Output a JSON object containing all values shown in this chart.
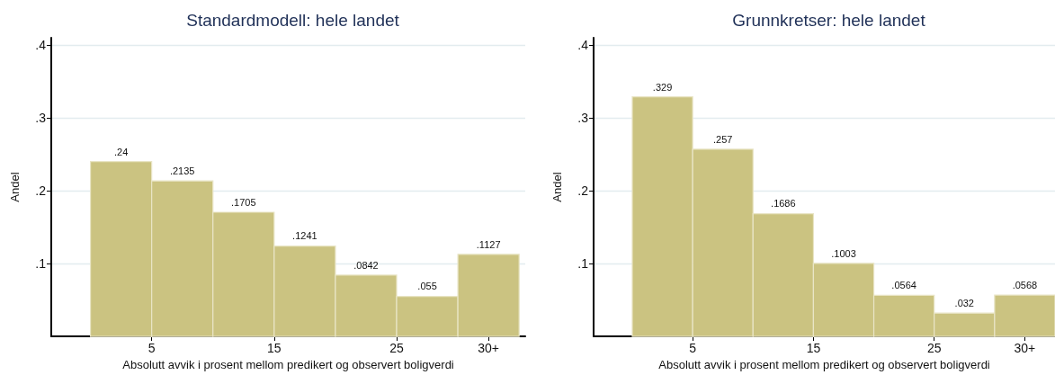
{
  "chart_data": [
    {
      "type": "histogram",
      "title": "Standardmodell: hele landet",
      "xlabel": "Absolutt avvik i prosent mellom predikert og observert boligverdi",
      "ylabel": "Andel",
      "bins": [
        0,
        5,
        10,
        15,
        20,
        25,
        30,
        35
      ],
      "values": [
        0.24,
        0.2135,
        0.1705,
        0.1241,
        0.0842,
        0.055,
        0.1127
      ],
      "value_labels": [
        ".24",
        ".2135",
        ".1705",
        ".1241",
        ".0842",
        ".055",
        ".1127"
      ],
      "color": "#cbc381",
      "xlim": [
        -3.2,
        35.5
      ],
      "xticks": [
        5,
        15,
        25,
        {
          "value": 32.5,
          "label": "30+"
        }
      ],
      "ylim": [
        0,
        0.41
      ],
      "yticks": [
        {
          "value": 0.1,
          "label": ".1"
        },
        {
          "value": 0.2,
          "label": ".2"
        },
        {
          "value": 0.3,
          "label": ".3"
        },
        {
          "value": 0.4,
          "label": ".4"
        }
      ],
      "grid": "y"
    },
    {
      "type": "histogram",
      "title": "Grunnkretser: hele landet",
      "xlabel": "Absolutt avvik i prosent mellom predikert og observert boligverdi",
      "ylabel": "Andel",
      "bins": [
        0,
        5,
        10,
        15,
        20,
        25,
        30,
        35
      ],
      "values": [
        0.329,
        0.257,
        0.1686,
        0.1003,
        0.0564,
        0.032,
        0.0568
      ],
      "value_labels": [
        ".329",
        ".257",
        ".1686",
        ".1003",
        ".0564",
        ".032",
        ".0568"
      ],
      "color": "#cbc381",
      "xlim": [
        -3.2,
        35
      ],
      "xticks": [
        5,
        15,
        25,
        {
          "value": 32.5,
          "label": "30+"
        }
      ],
      "ylim": [
        0,
        0.41
      ],
      "yticks": [
        {
          "value": 0.1,
          "label": ".1"
        },
        {
          "value": 0.2,
          "label": ".2"
        },
        {
          "value": 0.3,
          "label": ".3"
        },
        {
          "value": 0.4,
          "label": ".4"
        }
      ],
      "grid": "y"
    }
  ]
}
